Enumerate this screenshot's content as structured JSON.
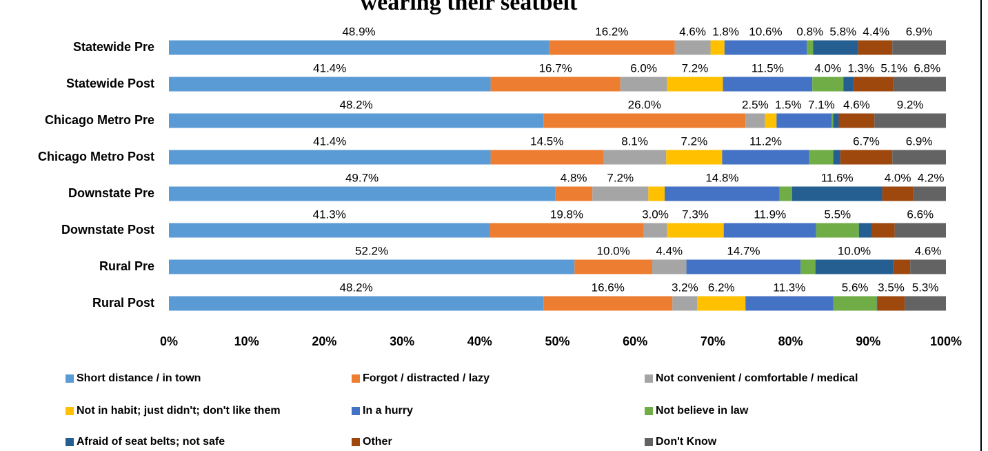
{
  "chart_data": {
    "type": "stacked-barh",
    "title": "wearing their seatbelt",
    "categories": [
      "Statewide Pre",
      "Statewide Post",
      "Chicago Metro Pre",
      "Chicago Metro Post",
      "Downstate Pre",
      "Downstate Post",
      "Rural Pre",
      "Rural Post"
    ],
    "series": [
      {
        "name": "Short distance / in town",
        "color": "#5b9bd5",
        "values": [
          48.9,
          41.4,
          48.2,
          41.4,
          49.7,
          41.3,
          52.2,
          48.2
        ],
        "value_labels": [
          "48.9%",
          "41.4%",
          "48.2%",
          "41.4%",
          "49.7%",
          "41.3%",
          "52.2%",
          "48.2%"
        ]
      },
      {
        "name": "Forgot / distracted / lazy",
        "color": "#ed7d31",
        "values": [
          16.2,
          16.7,
          26.0,
          14.5,
          4.8,
          19.8,
          10.0,
          16.6
        ],
        "value_labels": [
          "16.2%",
          "16.7%",
          "26.0%",
          "14.5%",
          "4.8%",
          "19.8%",
          "10.0%",
          "16.6%"
        ]
      },
      {
        "name": "Not convenient / comfortable / medical",
        "color": "#a5a5a5",
        "values": [
          4.6,
          6.0,
          2.5,
          8.1,
          7.2,
          3.0,
          4.4,
          3.2
        ],
        "value_labels": [
          "4.6%",
          "6.0%",
          "2.5%",
          "8.1%",
          "7.2%",
          "3.0%",
          "4.4%",
          "3.2%"
        ]
      },
      {
        "name": "Not in habit; just didn't; don't like them",
        "color": "#ffc000",
        "values": [
          1.8,
          7.2,
          1.5,
          7.2,
          2.1,
          7.3,
          0,
          6.2
        ],
        "value_labels": [
          "1.8%",
          "7.2%",
          "1.5%",
          "7.2%",
          null,
          "7.3%",
          null,
          "6.2%"
        ]
      },
      {
        "name": "In a hurry",
        "color": "#4472c4",
        "values": [
          10.6,
          11.5,
          7.1,
          11.2,
          14.8,
          11.9,
          14.7,
          11.3
        ],
        "value_labels": [
          "10.6%",
          "11.5%",
          "7.1%",
          "11.2%",
          "14.8%",
          "11.9%",
          "14.7%",
          "11.3%"
        ]
      },
      {
        "name": "Not believe in law",
        "color": "#70ad47",
        "values": [
          0.8,
          4.0,
          0.2,
          3.1,
          1.6,
          5.5,
          1.9,
          5.6
        ],
        "value_labels": [
          "0.8%",
          "4.0%",
          null,
          null,
          null,
          "5.5%",
          null,
          "5.6%"
        ]
      },
      {
        "name": "Afraid of seat belts; not safe",
        "color": "#255e91",
        "values": [
          5.8,
          1.3,
          0.7,
          0.9,
          11.6,
          1.7,
          10.0,
          0.1
        ],
        "value_labels": [
          "5.8%",
          "1.3%",
          null,
          null,
          "11.6%",
          null,
          "10.0%",
          null
        ]
      },
      {
        "name": "Other",
        "color": "#9e480e",
        "values": [
          4.4,
          5.1,
          4.6,
          6.7,
          4.0,
          2.9,
          2.2,
          3.5
        ],
        "value_labels": [
          "4.4%",
          "5.1%",
          "4.6%",
          "6.7%",
          "4.0%",
          null,
          null,
          "3.5%"
        ]
      },
      {
        "name": "Don't Know",
        "color": "#636363",
        "values": [
          6.9,
          6.8,
          9.2,
          6.9,
          4.2,
          6.6,
          4.6,
          5.3
        ],
        "value_labels": [
          "6.9%",
          "6.8%",
          "9.2%",
          "6.9%",
          "4.2%",
          "6.6%",
          "4.6%",
          "5.3%"
        ]
      }
    ],
    "xlim": [
      0,
      100
    ],
    "xticks": [
      {
        "value": 0,
        "label": "0%"
      },
      {
        "value": 10,
        "label": "10%"
      },
      {
        "value": 20,
        "label": "20%"
      },
      {
        "value": 30,
        "label": "30%"
      },
      {
        "value": 40,
        "label": "40%"
      },
      {
        "value": 50,
        "label": "50%"
      },
      {
        "value": 60,
        "label": "60%"
      },
      {
        "value": 70,
        "label": "70%"
      },
      {
        "value": 80,
        "label": "80%"
      },
      {
        "value": 90,
        "label": "90%"
      },
      {
        "value": 100,
        "label": "100%"
      }
    ],
    "legend": "bottom"
  }
}
